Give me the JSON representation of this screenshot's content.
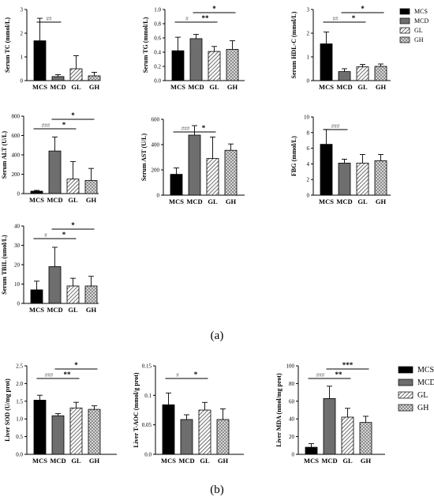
{
  "panel_labels": [
    "(a)",
    "(b)"
  ],
  "legend": {
    "a": [
      "MCS",
      "MCD",
      "GL",
      "GH"
    ],
    "b": [
      "MCS",
      "MCD",
      "GL",
      "GH"
    ]
  },
  "colors": {
    "MCS": "#000000",
    "MCD": "#6e6e6e",
    "GL": "#8a8a8a",
    "GH": "#bdbdbd"
  },
  "chart_data": [
    {
      "type": "bar",
      "panel": "a",
      "ylabel": "Serum TC (mmol/L)",
      "categories": [
        "MCS",
        "MCD",
        "GL",
        "GH"
      ],
      "values": [
        1.68,
        0.17,
        0.5,
        0.2
      ],
      "errors": [
        0.95,
        0.08,
        0.55,
        0.15
      ],
      "ylim": [
        0,
        3
      ],
      "yticks": [
        0,
        1,
        2,
        3
      ],
      "annotations": [
        {
          "from": 0,
          "to": 1,
          "text": "##"
        }
      ]
    },
    {
      "type": "bar",
      "panel": "a",
      "ylabel": "Serum TG (mmol/L)",
      "categories": [
        "MCS",
        "MCD",
        "GL",
        "GH"
      ],
      "values": [
        0.42,
        0.59,
        0.41,
        0.44
      ],
      "errors": [
        0.19,
        0.06,
        0.07,
        0.12
      ],
      "ylim": [
        0,
        1.0
      ],
      "yticks": [
        0.0,
        0.2,
        0.4,
        0.6,
        0.8,
        1.0
      ],
      "annotations": [
        {
          "from": 0,
          "to": 1,
          "text": "#"
        },
        {
          "from": 1,
          "to": 2,
          "text": "**"
        },
        {
          "from": 1,
          "to": 3,
          "text": "*"
        }
      ]
    },
    {
      "type": "bar",
      "panel": "a",
      "ylabel": "Serum HDL-C (mmol/L)",
      "categories": [
        "MCS",
        "MCD",
        "GL",
        "GH"
      ],
      "values": [
        1.55,
        0.38,
        0.58,
        0.6
      ],
      "errors": [
        0.5,
        0.12,
        0.1,
        0.1
      ],
      "ylim": [
        0,
        3
      ],
      "yticks": [
        0,
        1,
        2,
        3
      ],
      "annotations": [
        {
          "from": 0,
          "to": 1,
          "text": "##"
        },
        {
          "from": 1,
          "to": 2,
          "text": "*"
        },
        {
          "from": 1,
          "to": 3,
          "text": "*"
        }
      ]
    },
    {
      "type": "bar",
      "panel": "a",
      "ylabel": "Serum ALT (U/L)",
      "categories": [
        "MCS",
        "MCD",
        "GL",
        "GH"
      ],
      "values": [
        25,
        440,
        150,
        135
      ],
      "errors": [
        8,
        145,
        180,
        125
      ],
      "ylim": [
        0,
        800
      ],
      "yticks": [
        0,
        200,
        400,
        600,
        800
      ],
      "annotations": [
        {
          "from": 0,
          "to": 1,
          "text": "###"
        },
        {
          "from": 1,
          "to": 2,
          "text": "*"
        },
        {
          "from": 1,
          "to": 3,
          "text": "*"
        }
      ]
    },
    {
      "type": "bar",
      "panel": "a",
      "ylabel": "Serum AST (U/L)",
      "categories": [
        "MCS",
        "MCD",
        "GL",
        "GH"
      ],
      "values": [
        165,
        475,
        290,
        355
      ],
      "errors": [
        50,
        75,
        170,
        50
      ],
      "ylim": [
        0,
        600
      ],
      "yticks": [
        0,
        200,
        400,
        600
      ],
      "annotations": [
        {
          "from": 0,
          "to": 1,
          "text": "###"
        },
        {
          "from": 1,
          "to": 2,
          "text": "*"
        }
      ]
    },
    {
      "type": "bar",
      "panel": "a",
      "ylabel": "FBG (mmol/L)",
      "categories": [
        "MCS",
        "MCD",
        "GL",
        "GH"
      ],
      "values": [
        6.5,
        4.1,
        4.1,
        4.4
      ],
      "errors": [
        1.9,
        0.5,
        1.1,
        0.8
      ],
      "ylim": [
        0,
        10
      ],
      "yticks": [
        0,
        2,
        4,
        6,
        8,
        10
      ],
      "annotations": [
        {
          "from": 0,
          "to": 1,
          "text": "###"
        }
      ]
    },
    {
      "type": "bar",
      "panel": "a",
      "ylabel": "Serum TBIL (umol/L)",
      "categories": [
        "MCS",
        "MCD",
        "GL",
        "GH"
      ],
      "values": [
        7,
        19,
        9,
        9
      ],
      "errors": [
        4.5,
        10,
        4,
        5
      ],
      "ylim": [
        0,
        40
      ],
      "yticks": [
        0,
        10,
        20,
        30,
        40
      ],
      "annotations": [
        {
          "from": 0,
          "to": 1,
          "text": "#"
        },
        {
          "from": 1,
          "to": 2,
          "text": "*"
        },
        {
          "from": 1,
          "to": 3,
          "text": "*"
        }
      ]
    },
    {
      "type": "bar",
      "panel": "b",
      "ylabel": "Liver SOD (U/mg prot)",
      "categories": [
        "MCS",
        "MCD",
        "GL",
        "GH"
      ],
      "values": [
        1.53,
        1.09,
        1.31,
        1.27
      ],
      "errors": [
        0.14,
        0.06,
        0.16,
        0.1
      ],
      "ylim": [
        0,
        2.5
      ],
      "yticks": [
        0.0,
        0.5,
        1.0,
        1.5,
        2.0,
        2.5
      ],
      "annotations": [
        {
          "from": 0,
          "to": 1,
          "text": "###"
        },
        {
          "from": 1,
          "to": 2,
          "text": "**"
        },
        {
          "from": 1,
          "to": 3,
          "text": "*"
        }
      ]
    },
    {
      "type": "bar",
      "panel": "b",
      "ylabel": "Liver T-AOC (mmol/g prot)",
      "categories": [
        "MCS",
        "MCD",
        "GL",
        "GH"
      ],
      "values": [
        0.084,
        0.059,
        0.075,
        0.059
      ],
      "errors": [
        0.02,
        0.008,
        0.013,
        0.018
      ],
      "ylim": [
        0,
        0.15
      ],
      "yticks": [
        0.0,
        0.05,
        0.1,
        0.15
      ],
      "annotations": [
        {
          "from": 0,
          "to": 1,
          "text": "#"
        },
        {
          "from": 1,
          "to": 2,
          "text": "*"
        }
      ]
    },
    {
      "type": "bar",
      "panel": "b",
      "ylabel": "Liver MDA (nmol/mg prot)",
      "categories": [
        "MCS",
        "MCD",
        "GL",
        "GH"
      ],
      "values": [
        8,
        63,
        42,
        36
      ],
      "errors": [
        4,
        14,
        10,
        7
      ],
      "ylim": [
        0,
        100
      ],
      "yticks": [
        0,
        20,
        40,
        60,
        80,
        100
      ],
      "annotations": [
        {
          "from": 0,
          "to": 1,
          "text": "###"
        },
        {
          "from": 1,
          "to": 2,
          "text": "**"
        },
        {
          "from": 1,
          "to": 3,
          "text": "***"
        }
      ]
    }
  ]
}
